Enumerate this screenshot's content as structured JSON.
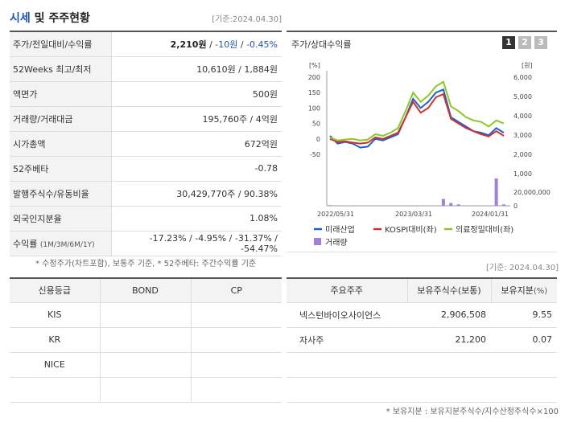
{
  "header": {
    "title_accent": "시세",
    "title_rest": " 및 주주현황",
    "base_date": "[기준:2024.04.30]"
  },
  "price_rows": [
    {
      "label": "주가/전일대비/수익률",
      "price": "2,210원",
      "sep1": " / ",
      "change": "-10원",
      "sep2": " / ",
      "rate": "-0.45%"
    },
    {
      "label": "52Weeks 최고/최저",
      "value": "10,610원 / 1,884원"
    },
    {
      "label": "액면가",
      "value": "500원"
    },
    {
      "label": "거래량/거래대금",
      "value": "195,760주 / 4억원"
    },
    {
      "label": "시가총액",
      "value": "672억원"
    },
    {
      "label": "52주베타",
      "value": "-0.78"
    },
    {
      "label": "발행주식수/유동비율",
      "value": "30,429,770주 / 90.38%"
    },
    {
      "label": "외국인지분율",
      "value": "1.08%"
    },
    {
      "label": "수익률",
      "label_sub": "(1M/3M/6M/1Y)",
      "value": "-17.23% / -4.95% / -31.37% / -54.47%"
    }
  ],
  "price_note": "* 수정주가(차트포함), 보통주 기준, * 52주베타: 주간수익률 기준",
  "chart": {
    "title": "주가/상대수익률",
    "tabs": [
      "1",
      "2",
      "3"
    ],
    "active_tab": 0
  },
  "chart_data": {
    "type": "line",
    "left_axis_unit": "[%]",
    "right_axis_unit": "[원]",
    "left_ticks": [
      "200",
      "150",
      "100",
      "50",
      "0",
      "-50"
    ],
    "right_ticks": [
      "6,000",
      "5,000",
      "4,000",
      "3,000",
      "2,000",
      "1,000"
    ],
    "volume_ticks": [
      "20,000,000",
      "0"
    ],
    "x_labels": [
      "2022/05/31",
      "2023/03/31",
      "2024/01/31"
    ],
    "ylim_left": [
      -50,
      200
    ],
    "series": [
      {
        "name": "미래산업",
        "color": "#1f5fd6",
        "values": [
          10,
          -15,
          -10,
          -15,
          -28,
          -25,
          0,
          -5,
          5,
          15,
          70,
          130,
          100,
          120,
          150,
          160,
          70,
          55,
          40,
          25,
          20,
          12,
          35,
          20
        ]
      },
      {
        "name": "KOSPI대비(좌)",
        "color": "#d0312d",
        "values": [
          0,
          -10,
          -8,
          -12,
          -15,
          -12,
          5,
          0,
          10,
          20,
          70,
          120,
          85,
          100,
          135,
          145,
          65,
          50,
          35,
          25,
          15,
          8,
          25,
          10
        ]
      },
      {
        "name": "의료정밀대비(좌)",
        "color": "#8ac926",
        "values": [
          5,
          -5,
          -2,
          0,
          -5,
          -2,
          15,
          10,
          20,
          35,
          90,
          150,
          120,
          140,
          170,
          185,
          105,
          90,
          70,
          60,
          55,
          40,
          60,
          50
        ]
      }
    ],
    "volume": {
      "name": "거래량",
      "color": "#a07fd8",
      "values": [
        0.02,
        0,
        0,
        0,
        0,
        0,
        0,
        0,
        0,
        0,
        0,
        0,
        0,
        0,
        0,
        0.25,
        0.1,
        0.05,
        0,
        0,
        0,
        0,
        1.0,
        0.05
      ]
    }
  },
  "base_date2": "[기준: 2024.04.30]",
  "credit_table": {
    "headers": [
      "신용등급",
      "BOND",
      "CP"
    ],
    "rows": [
      [
        "KIS",
        "",
        ""
      ],
      [
        "KR",
        "",
        ""
      ],
      [
        "NICE",
        "",
        ""
      ],
      [
        "",
        "",
        ""
      ]
    ]
  },
  "holder_table": {
    "headers": [
      "주요주주",
      "보유주식수(보통)",
      "보유지분"
    ],
    "pct_unit": "(%)",
    "rows": [
      {
        "name": "넥스턴바이오사이언스",
        "shares": "2,906,508",
        "pct": "9.55"
      },
      {
        "name": "자사주",
        "shares": "21,200",
        "pct": "0.07"
      },
      {
        "name": "",
        "shares": "",
        "pct": ""
      },
      {
        "name": "",
        "shares": "",
        "pct": ""
      }
    ]
  },
  "holder_note": "* 보유지분 : 보유지분주식수/지수산정주식수×100"
}
